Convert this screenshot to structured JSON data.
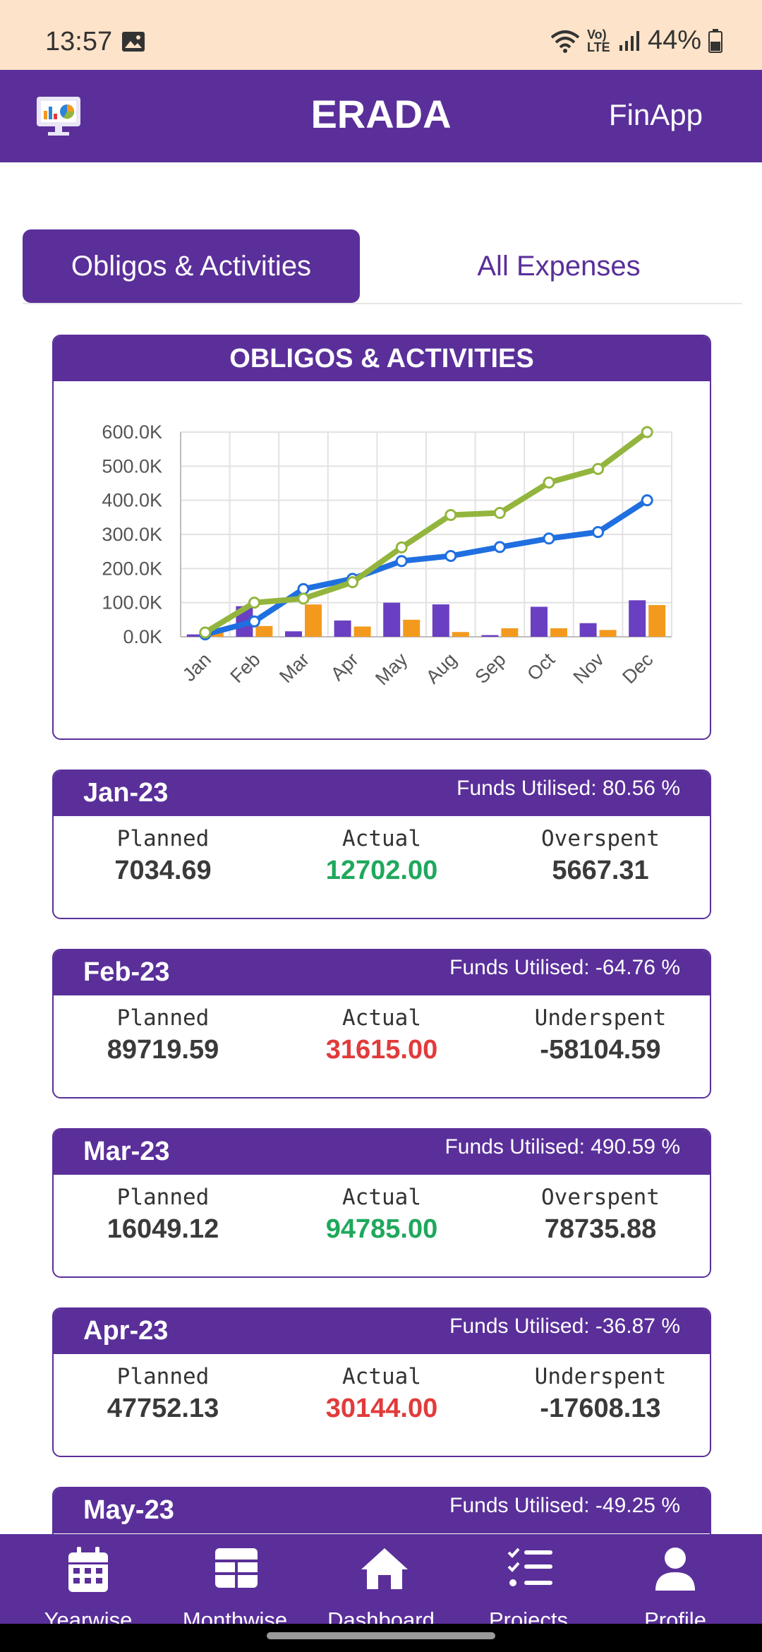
{
  "status": {
    "time": "13:57",
    "battery": "44%",
    "network": "Vo) LTE"
  },
  "header": {
    "title": "ERADA",
    "right_label": "FinApp"
  },
  "tabs": [
    {
      "label": "Obligos & Activities",
      "active": true
    },
    {
      "label": "All Expenses",
      "active": false
    }
  ],
  "chart_card_title": "OBLIGOS & ACTIVITIES",
  "chart_data": {
    "type": "bar+line",
    "categories": [
      "Jan",
      "Feb",
      "Mar",
      "Apr",
      "May",
      "Aug",
      "Sep",
      "Oct",
      "Nov",
      "Dec"
    ],
    "series": [
      {
        "kind": "bar",
        "color": "#6a3fc2",
        "values": [
          7034.69,
          89719.59,
          16049.12,
          47752.13,
          100000,
          95000,
          5000,
          88000,
          40000,
          107000
        ]
      },
      {
        "kind": "bar",
        "color": "#f39a1e",
        "values": [
          12702,
          31615,
          94785,
          30144,
          50000,
          14000,
          25000,
          25000,
          20000,
          93000
        ]
      },
      {
        "kind": "line",
        "color": "#1f6fe0",
        "values": [
          7034.69,
          45000,
          140000,
          170000,
          222000,
          237000,
          263000,
          288000,
          307000,
          400000
        ]
      },
      {
        "kind": "line",
        "color": "#93b53e",
        "values": [
          12702,
          100000,
          112000,
          160000,
          262000,
          357000,
          363000,
          452000,
          492000,
          600000
        ]
      }
    ],
    "y_ticks": [
      "0.0K",
      "100.0K",
      "200.0K",
      "300.0K",
      "400.0K",
      "500.0K",
      "600.0K"
    ],
    "ylim": [
      0,
      600000
    ],
    "grid": true
  },
  "months": [
    {
      "name": "Jan-23",
      "funds": "Funds Utilised: 80.56 %",
      "planned_label": "Planned",
      "planned": "7034.69",
      "actual_label": "Actual",
      "actual": "12702.00",
      "actual_status": "green",
      "diff_label": "Overspent",
      "diff": "5667.31"
    },
    {
      "name": "Feb-23",
      "funds": "Funds Utilised: -64.76 %",
      "planned_label": "Planned",
      "planned": "89719.59",
      "actual_label": "Actual",
      "actual": "31615.00",
      "actual_status": "red",
      "diff_label": "Underspent",
      "diff": "-58104.59"
    },
    {
      "name": "Mar-23",
      "funds": "Funds Utilised: 490.59 %",
      "planned_label": "Planned",
      "planned": "16049.12",
      "actual_label": "Actual",
      "actual": "94785.00",
      "actual_status": "green",
      "diff_label": "Overspent",
      "diff": "78735.88"
    },
    {
      "name": "Apr-23",
      "funds": "Funds Utilised: -36.87 %",
      "planned_label": "Planned",
      "planned": "47752.13",
      "actual_label": "Actual",
      "actual": "30144.00",
      "actual_status": "red",
      "diff_label": "Underspent",
      "diff": "-17608.13"
    },
    {
      "name": "May-23",
      "funds": "Funds Utilised: -49.25 %"
    }
  ],
  "nav": [
    {
      "label": "Yearwise",
      "icon": "calendar-icon"
    },
    {
      "label": "Monthwise",
      "icon": "grid-icon"
    },
    {
      "label": "Dashboard",
      "icon": "home-icon"
    },
    {
      "label": "Projects",
      "icon": "checklist-icon"
    },
    {
      "label": "Profile",
      "icon": "user-icon"
    }
  ],
  "colors": {
    "primary": "#5a2f9a",
    "status_bar": "#fde3c9",
    "green": "#1fa85c",
    "red": "#e23b3b"
  }
}
